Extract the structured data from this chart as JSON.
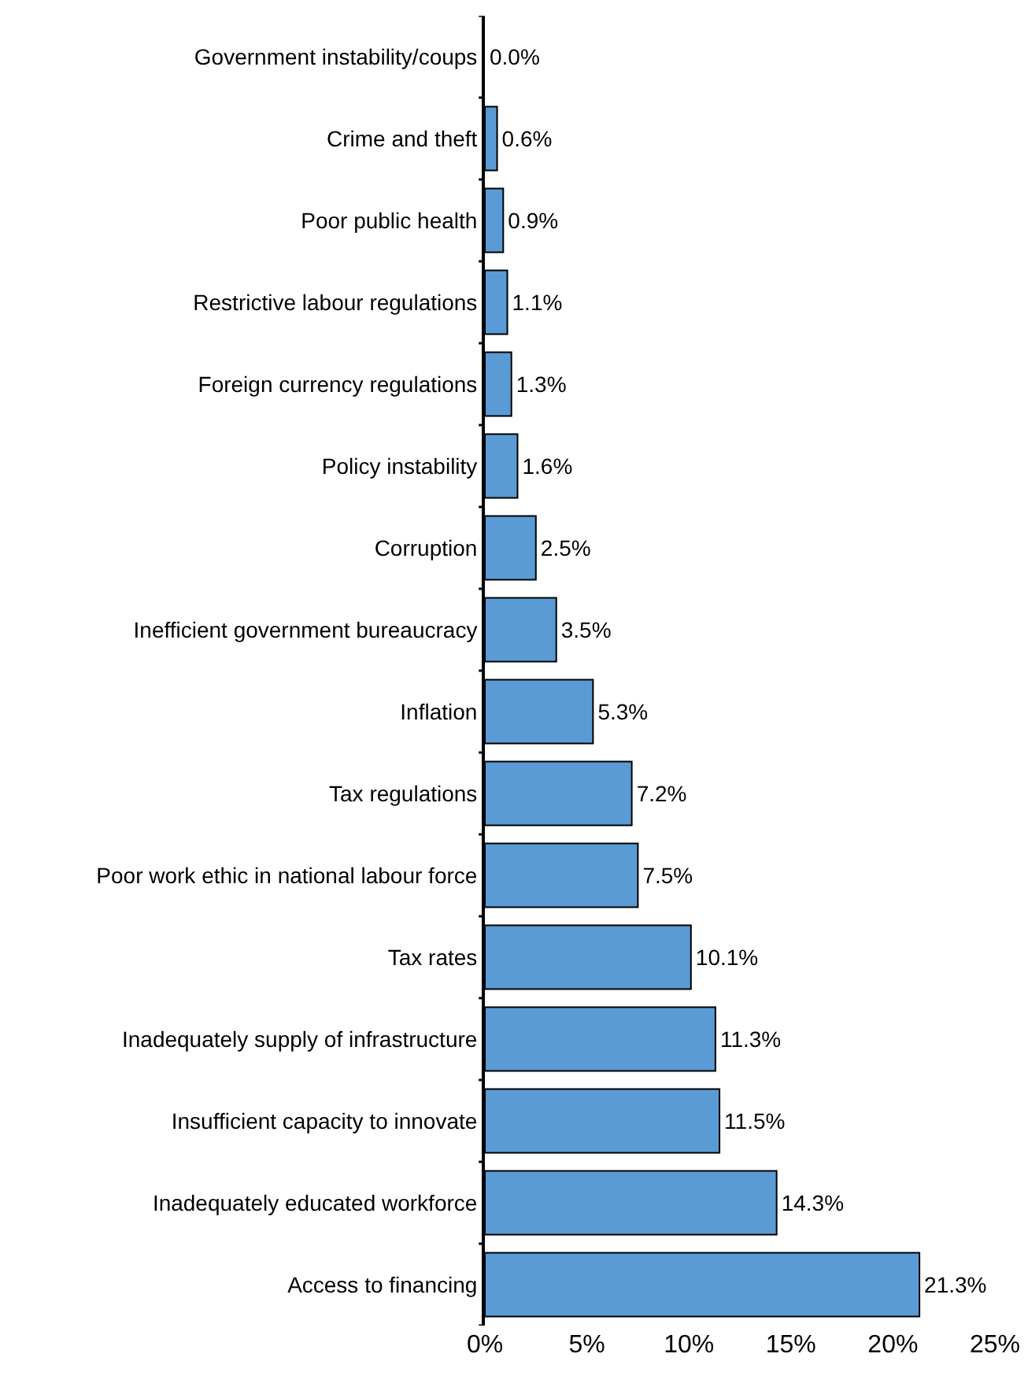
{
  "chart_data": {
    "type": "bar",
    "orientation": "horizontal",
    "categories": [
      "Government instability/coups",
      "Crime and theft",
      "Poor public health",
      "Restrictive labour regulations",
      "Foreign currency regulations",
      "Policy instability",
      "Corruption",
      "Inefficient government bureaucracy",
      "Inflation",
      "Tax regulations",
      "Poor work ethic in national labour force",
      "Tax rates",
      "Inadequately supply of infrastructure",
      "Insufficient capacity to innovate",
      "Inadequately educated workforce",
      "Access to financing"
    ],
    "values": [
      0.0,
      0.6,
      0.9,
      1.1,
      1.3,
      1.6,
      2.5,
      3.5,
      5.3,
      7.2,
      7.5,
      10.1,
      11.3,
      11.5,
      14.3,
      21.3
    ],
    "value_labels": [
      "0.0%",
      "0.6%",
      "0.9%",
      "1.1%",
      "1.3%",
      "1.6%",
      "2.5%",
      "3.5%",
      "5.3%",
      "7.2%",
      "7.5%",
      "10.1%",
      "11.3%",
      "11.5%",
      "14.3%",
      "21.3%"
    ],
    "color": "#5b9bd5",
    "xlim": [
      0,
      25
    ],
    "xticks": [
      {
        "value": 0,
        "label": "0%"
      },
      {
        "value": 5,
        "label": "5%"
      },
      {
        "value": 10,
        "label": "10%"
      },
      {
        "value": 15,
        "label": "15%"
      },
      {
        "value": 20,
        "label": "20%"
      },
      {
        "value": 25,
        "label": "25%"
      }
    ],
    "grid": false,
    "legend": false
  }
}
